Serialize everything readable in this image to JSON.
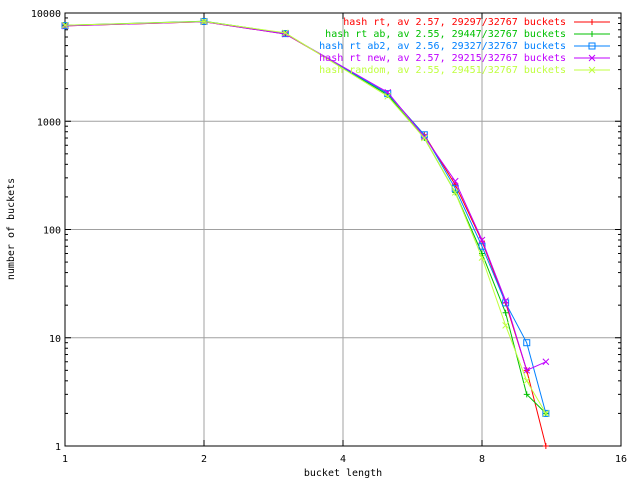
{
  "chart_data": {
    "type": "line",
    "title": "",
    "xlabel": "bucket length",
    "ylabel": "number of buckets",
    "x_scale": "log2",
    "y_scale": "log10",
    "xlim": [
      1,
      16
    ],
    "ylim": [
      1,
      10000
    ],
    "x_ticks": [
      "1",
      "2",
      "4",
      "8",
      "16"
    ],
    "y_ticks": [
      "1",
      "10",
      "100",
      "1000",
      "10000"
    ],
    "grid": true,
    "legend_position": "top-right",
    "series": [
      {
        "name": "hash rt, av 2.57, 29297/32767 buckets",
        "color": "#ff0000",
        "marker": "plus",
        "points": [
          [
            1,
            7600
          ],
          [
            2,
            8300
          ],
          [
            3,
            6400
          ],
          [
            5,
            1800
          ],
          [
            6,
            750
          ],
          [
            7,
            260
          ],
          [
            8,
            78
          ],
          [
            9,
            21
          ],
          [
            10,
            5
          ],
          [
            11,
            1
          ]
        ]
      },
      {
        "name": "hash rt ab, av 2.55, 29447/32767 buckets",
        "color": "#00c000",
        "marker": "plus",
        "points": [
          [
            1,
            7700
          ],
          [
            2,
            8400
          ],
          [
            3,
            6500
          ],
          [
            5,
            1750
          ],
          [
            6,
            700
          ],
          [
            7,
            220
          ],
          [
            8,
            60
          ],
          [
            9,
            17
          ],
          [
            10,
            3
          ],
          [
            11,
            2
          ]
        ]
      },
      {
        "name": "hash rt ab2, av 2.56, 29327/32767 buckets",
        "color": "#0080ff",
        "marker": "square",
        "points": [
          [
            1,
            7650
          ],
          [
            2,
            8350
          ],
          [
            3,
            6450
          ],
          [
            5,
            1800
          ],
          [
            6,
            750
          ],
          [
            7,
            240
          ],
          [
            8,
            70
          ],
          [
            9,
            21
          ],
          [
            10,
            9
          ],
          [
            11,
            2
          ]
        ]
      },
      {
        "name": "hash rt new, av 2.57, 29215/32767 buckets",
        "color": "#c000ff",
        "marker": "cross",
        "points": [
          [
            1,
            7600
          ],
          [
            2,
            8300
          ],
          [
            3,
            6400
          ],
          [
            5,
            1850
          ],
          [
            6,
            720
          ],
          [
            7,
            280
          ],
          [
            8,
            80
          ],
          [
            9,
            22
          ],
          [
            10,
            5
          ],
          [
            11,
            6
          ]
        ]
      },
      {
        "name": "hash random, av 2.55, 29451/32767 buckets",
        "color": "#c0ff40",
        "marker": "cross",
        "points": [
          [
            1,
            7700
          ],
          [
            2,
            8350
          ],
          [
            3,
            6550
          ],
          [
            5,
            1700
          ],
          [
            6,
            700
          ],
          [
            7,
            220
          ],
          [
            8,
            55
          ],
          [
            9,
            13
          ],
          [
            10,
            4
          ],
          [
            11,
            2
          ]
        ]
      }
    ]
  }
}
